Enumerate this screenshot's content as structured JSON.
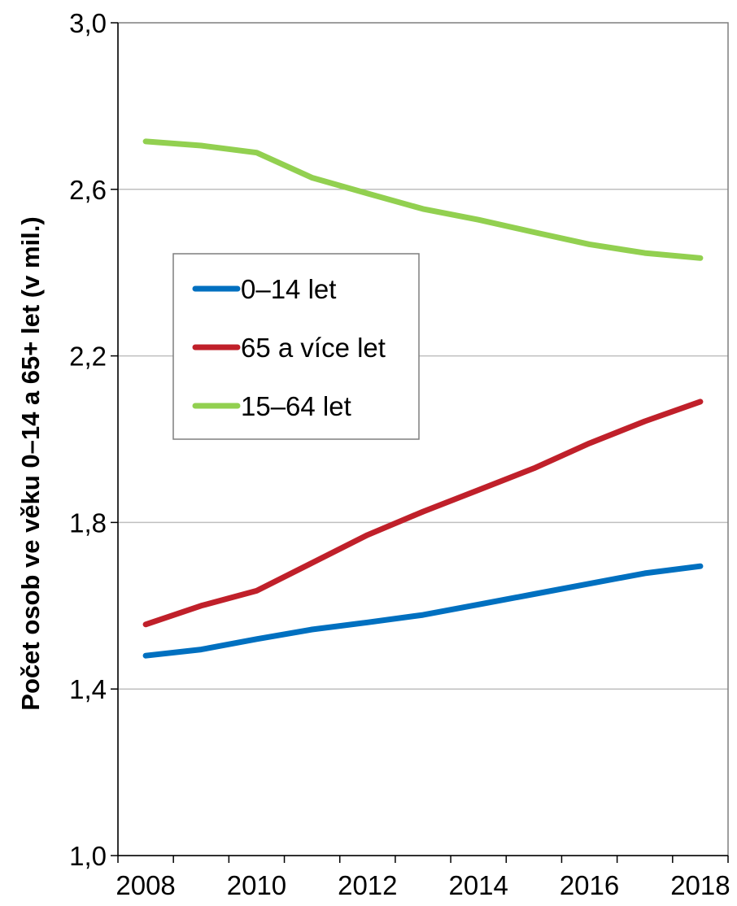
{
  "chart_data": {
    "type": "line",
    "title": "",
    "xlabel": "",
    "ylabel": "Počet osob ve věku 0–14 a 65+ let (v mil.)",
    "x": [
      2008,
      2009,
      2010,
      2011,
      2012,
      2013,
      2014,
      2015,
      2016,
      2017,
      2018
    ],
    "x_ticks": [
      "2008",
      "2010",
      "2012",
      "2014",
      "2016",
      "2018"
    ],
    "y_ticks": [
      "1,0",
      "1,4",
      "1,8",
      "2,2",
      "2,6",
      "3,0"
    ],
    "ylim": [
      1.0,
      3.0
    ],
    "grid": "horizontal",
    "legend_position": "left-middle",
    "series": [
      {
        "name": "0–14 let",
        "color": "#0070c0",
        "values": [
          1.48,
          1.495,
          1.52,
          1.543,
          1.56,
          1.578,
          1.603,
          1.628,
          1.653,
          1.678,
          1.695
        ]
      },
      {
        "name": "65 a více let",
        "color": "#c0202a",
        "values": [
          1.555,
          1.6,
          1.636,
          1.703,
          1.77,
          1.826,
          1.878,
          1.93,
          1.99,
          2.043,
          2.09
        ]
      },
      {
        "name": "15–64 let",
        "color": "#92d050",
        "values": [
          2.715,
          2.705,
          2.688,
          2.628,
          2.59,
          2.553,
          2.527,
          2.497,
          2.468,
          2.447,
          2.435
        ]
      }
    ]
  }
}
